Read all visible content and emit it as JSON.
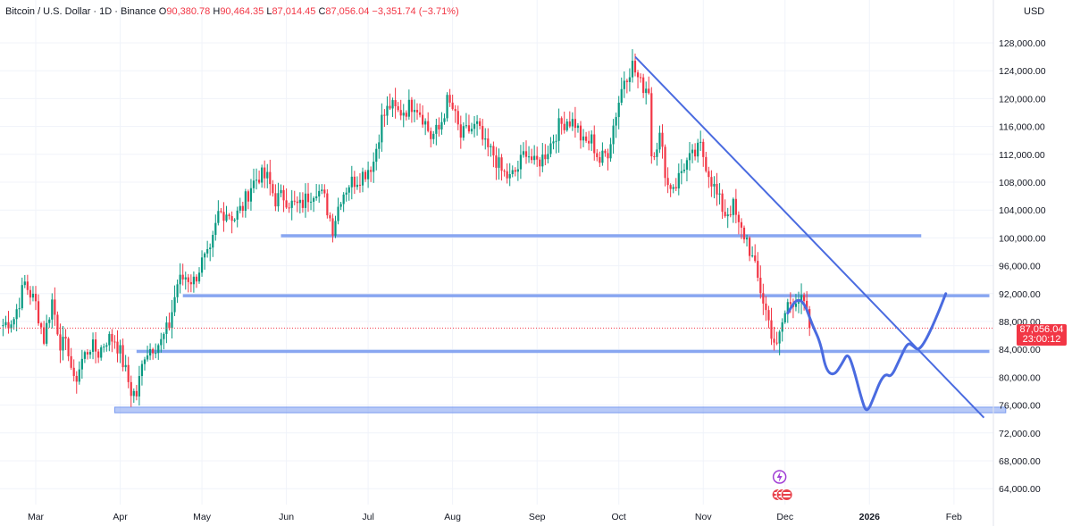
{
  "header": {
    "symbol": "Bitcoin / U.S. Dollar · 1D · Binance",
    "o_label": "O",
    "o_value": "90,380.78",
    "h_label": "H",
    "h_value": "90,464.35",
    "l_label": "L",
    "l_value": "87,014.45",
    "c_label": "C",
    "c_value": "87,056.04",
    "change": "−3,351.74 (−3.71%)"
  },
  "currency": "USD",
  "price_badge": {
    "price": "87,056.04",
    "countdown": "23:00:12"
  },
  "colors": {
    "up": "#089981",
    "down": "#f23645",
    "drawing": "#4a6be0",
    "zone": "#7b9cf0"
  },
  "chart_data": {
    "type": "candlestick",
    "title": "Bitcoin / U.S. Dollar · 1D · Binance",
    "ylim": [
      62000,
      130500
    ],
    "y_ticks": [
      64000,
      68000,
      72000,
      76000,
      80000,
      84000,
      88000,
      92000,
      96000,
      100000,
      104000,
      108000,
      112000,
      116000,
      120000,
      124000,
      128000
    ],
    "y_tick_labels": [
      "64,000.00",
      "68,000.00",
      "72,000.00",
      "76,000.00",
      "80,000.00",
      "84,000.00",
      "88,000.00",
      "92,000.00",
      "96,000.00",
      "100,000.00",
      "104,000.00",
      "108,000.00",
      "112,000.00",
      "116,000.00",
      "120,000.00",
      "124,000.00",
      "128,000.00"
    ],
    "x_ticks": [
      {
        "label": "Mar",
        "day": 0
      },
      {
        "label": "Apr",
        "day": 31
      },
      {
        "label": "May",
        "day": 61
      },
      {
        "label": "Jun",
        "day": 92
      },
      {
        "label": "Jul",
        "day": 122
      },
      {
        "label": "Aug",
        "day": 153
      },
      {
        "label": "Sep",
        "day": 184
      },
      {
        "label": "Oct",
        "day": 214
      },
      {
        "label": "Nov",
        "day": 245
      },
      {
        "label": "Dec",
        "day": 275
      },
      {
        "label": "2026",
        "day": 306
      },
      {
        "label": "Feb",
        "day": 337
      }
    ],
    "last_price": 87056.04,
    "price_path": [
      [
        -12,
        87500
      ],
      [
        -8,
        88500
      ],
      [
        -4,
        93500
      ],
      [
        0,
        90500
      ],
      [
        3,
        85500
      ],
      [
        6,
        91000
      ],
      [
        9,
        85000
      ],
      [
        12,
        84000
      ],
      [
        14,
        79000
      ],
      [
        17,
        82500
      ],
      [
        20,
        84500
      ],
      [
        23,
        83500
      ],
      [
        26,
        85500
      ],
      [
        29,
        85500
      ],
      [
        31,
        83500
      ],
      [
        35,
        78000
      ],
      [
        37,
        77500
      ],
      [
        40,
        83500
      ],
      [
        43,
        84500
      ],
      [
        46,
        85000
      ],
      [
        49,
        87500
      ],
      [
        52,
        93500
      ],
      [
        55,
        94500
      ],
      [
        58,
        93800
      ],
      [
        61,
        96500
      ],
      [
        64,
        97500
      ],
      [
        67,
        103500
      ],
      [
        70,
        103800
      ],
      [
        73,
        102900
      ],
      [
        76,
        104500
      ],
      [
        79,
        107500
      ],
      [
        82,
        109000
      ],
      [
        85,
        108500
      ],
      [
        88,
        105500
      ],
      [
        91,
        106000
      ],
      [
        94,
        104800
      ],
      [
        97,
        104500
      ],
      [
        100,
        106000
      ],
      [
        103,
        107200
      ],
      [
        106,
        105500
      ],
      [
        109,
        101500
      ],
      [
        112,
        106000
      ],
      [
        115,
        107800
      ],
      [
        118,
        108500
      ],
      [
        121,
        109500
      ],
      [
        124,
        111000
      ],
      [
        127,
        117000
      ],
      [
        130,
        119000
      ],
      [
        133,
        118000
      ],
      [
        136,
        118500
      ],
      [
        139,
        119500
      ],
      [
        142,
        117500
      ],
      [
        145,
        114500
      ],
      [
        148,
        115500
      ],
      [
        151,
        119500
      ],
      [
        153,
        118500
      ],
      [
        156,
        114500
      ],
      [
        159,
        115500
      ],
      [
        162,
        116000
      ],
      [
        165,
        113000
      ],
      [
        168,
        112000
      ],
      [
        171,
        109500
      ],
      [
        174,
        108500
      ],
      [
        177,
        110000
      ],
      [
        180,
        112800
      ],
      [
        183,
        110500
      ],
      [
        186,
        111500
      ],
      [
        189,
        113500
      ],
      [
        192,
        116000
      ],
      [
        195,
        117000
      ],
      [
        198,
        116500
      ],
      [
        201,
        113500
      ],
      [
        204,
        114000
      ],
      [
        207,
        111000
      ],
      [
        210,
        112500
      ],
      [
        213,
        118000
      ],
      [
        216,
        123000
      ],
      [
        219,
        124800
      ],
      [
        222,
        122000
      ],
      [
        225,
        121500
      ],
      [
        226,
        112000
      ],
      [
        229,
        114500
      ],
      [
        232,
        107500
      ],
      [
        235,
        107800
      ],
      [
        238,
        110500
      ],
      [
        241,
        111500
      ],
      [
        244,
        113000
      ],
      [
        247,
        109500
      ],
      [
        250,
        106000
      ],
      [
        253,
        103500
      ],
      [
        256,
        104500
      ],
      [
        258,
        101500
      ],
      [
        261,
        99800
      ],
      [
        264,
        95500
      ],
      [
        267,
        91000
      ],
      [
        270,
        86500
      ],
      [
        272,
        84000
      ],
      [
        274,
        87800
      ],
      [
        276,
        90500
      ],
      [
        279,
        91500
      ],
      [
        282,
        90300
      ],
      [
        284,
        87056
      ]
    ],
    "horizontal_levels": [
      {
        "price": 100300,
        "from_day": 90,
        "to_day": 325
      },
      {
        "price": 91700,
        "from_day": 54,
        "to_day": 350
      },
      {
        "price": 83700,
        "from_day": 37,
        "to_day": 350
      }
    ],
    "support_zone": {
      "low": 74900,
      "high": 75700,
      "from_day": 29,
      "to_day": 356
    },
    "trend_line": {
      "start": [
        220,
        126000
      ],
      "end": [
        348,
        74200
      ]
    },
    "projection": [
      [
        276,
        89200
      ],
      [
        279,
        91200
      ],
      [
        282,
        90800
      ],
      [
        285,
        87500
      ],
      [
        288,
        85000
      ],
      [
        290,
        81000
      ],
      [
        293,
        80200
      ],
      [
        296,
        82000
      ],
      [
        298,
        83500
      ],
      [
        300,
        81500
      ],
      [
        303,
        77000
      ],
      [
        305,
        74700
      ],
      [
        308,
        77500
      ],
      [
        310,
        79500
      ],
      [
        312,
        80500
      ],
      [
        314,
        80000
      ],
      [
        317,
        82500
      ],
      [
        320,
        85000
      ],
      [
        322,
        84500
      ],
      [
        324,
        83800
      ],
      [
        327,
        85500
      ],
      [
        331,
        89000
      ],
      [
        334,
        92000
      ]
    ]
  }
}
